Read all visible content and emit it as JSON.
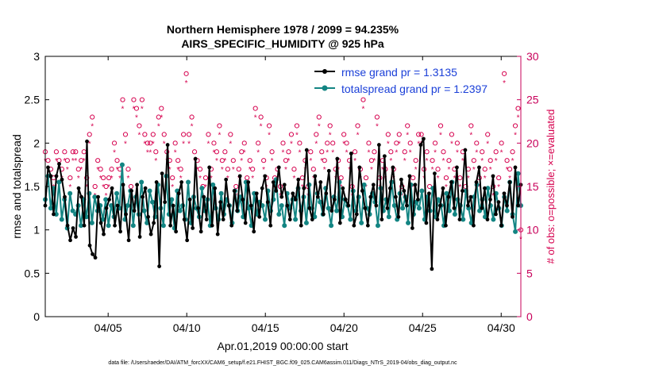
{
  "chart_data": {
    "type": "line",
    "title_line1": "Northern Hemisphere 1978 / 2099 = 94.235%",
    "title_line2": "AIRS_SPECIFIC_HUMIDITY @ 925 hPa",
    "xlabel": "Apr.01,2019 00:00:00 start",
    "ylabel_left": "rmse and totalspread",
    "ylabel_right": "# of obs: o=possible; ×=evaluated",
    "footer": "data file: /Users/raeder/DAI/ATM_forcXX/CAM6_setup/f.e21.FHIST_BGC.f09_025.CAM6assim.011/Diags_NTrS_2019-04/obs_diag_output.nc",
    "x_range": [
      1.0,
      31.25
    ],
    "ylim_left": [
      0,
      3
    ],
    "ylim_right": [
      0,
      30
    ],
    "x_ticks": [
      5,
      10,
      15,
      20,
      25,
      30
    ],
    "x_tick_labels": [
      "04/05",
      "04/10",
      "04/15",
      "04/20",
      "04/25",
      "04/30"
    ],
    "y_left_ticks": [
      0,
      0.5,
      1,
      1.5,
      2,
      2.5,
      3
    ],
    "y_left_tick_labels": [
      "0",
      "0.5",
      "1",
      "1.5",
      "2",
      "2.5",
      "3"
    ],
    "y_right_ticks": [
      0,
      5,
      10,
      15,
      20,
      25,
      30
    ],
    "y_right_tick_labels": [
      "0",
      "5",
      "10",
      "15",
      "20",
      "25",
      "30"
    ],
    "legend_position": "top-right",
    "colors": {
      "rmse": "#000000",
      "spread": "#138583",
      "obs": "#d6004e",
      "axis": "#000000",
      "right_axis": "#c8005a",
      "legend_text": "#1a3fd8"
    },
    "series": [
      {
        "name": "rmse grand pr = 1.3135",
        "values": [
          1.28,
          1.72,
          1.62,
          1.18,
          1.62,
          1.76,
          1.58,
          1.38,
          1.05,
          0.88,
          1.02,
          0.92,
          1.48,
          1.38,
          1.05,
          2.02,
          0.82,
          0.72,
          0.68,
          1.38,
          1.08,
          0.95,
          1.25,
          1.35,
          1.48,
          1.05,
          1.28,
          0.98,
          1.52,
          1.18,
          0.88,
          1.45,
          1.22,
          1.52,
          0.92,
          1.38,
          1.48,
          1.15,
          0.95,
          1.08,
          1.55,
          0.58,
          1.65,
          1.32,
          1.98,
          1.05,
          1.28,
          0.98,
          1.42,
          1.55,
          1.12,
          0.88,
          1.35,
          1.02,
          1.82,
          1.25,
          0.98,
          1.38,
          1.12,
          1.72,
          1.05,
          1.48,
          0.95,
          1.32,
          1.12,
          1.58,
          1.28,
          1.05,
          1.45,
          1.22,
          1.62,
          1.35,
          1.08,
          1.55,
          1.28,
          0.98,
          1.42,
          1.15,
          1.48,
          1.62,
          1.32,
          1.05,
          1.55,
          1.45,
          1.72,
          1.38,
          1.52,
          1.28,
          1.12,
          1.42,
          1.35,
          1.58,
          1.05,
          1.48,
          1.92,
          1.25,
          1.12,
          1.62,
          1.38,
          1.55,
          1.18,
          1.42,
          1.68,
          1.22,
          1.35,
          1.82,
          1.08,
          1.48,
          1.35,
          1.28,
          1.88,
          1.05,
          1.18,
          1.72,
          1.45,
          1.25,
          1.05,
          1.38,
          1.52,
          1.28,
          1.98,
          1.12,
          1.85,
          1.25,
          1.48,
          1.72,
          1.38,
          1.15,
          1.58,
          1.45,
          1.28,
          1.62,
          1.02,
          1.52,
          1.35,
          1.98,
          2.05,
          1.08,
          1.42,
          0.55,
          1.65,
          1.12,
          1.28,
          1.48,
          1.05,
          1.38,
          1.55,
          1.25,
          1.72,
          1.12,
          1.45,
          1.92,
          1.28,
          1.38,
          1.05,
          1.55,
          1.72,
          1.25,
          1.48,
          1.12,
          1.35,
          1.62,
          1.18,
          1.32,
          1.05,
          1.42,
          1.28,
          1.55,
          1.15,
          1.72,
          1.28,
          1.52
        ]
      },
      {
        "name": "totalspread grand pr = 1.2397",
        "values": [
          1.35,
          1.62,
          1.25,
          1.48,
          1.18,
          1.55,
          1.12,
          1.35,
          1.02,
          1.42,
          1.22,
          1.18,
          1.28,
          1.05,
          1.35,
          1.15,
          1.42,
          1.08,
          1.38,
          1.22,
          1.28,
          1.12,
          1.35,
          1.05,
          1.28,
          1.15,
          1.42,
          1.25,
          1.75,
          1.12,
          1.28,
          1.45,
          1.05,
          1.38,
          1.18,
          1.55,
          1.22,
          1.08,
          1.45,
          1.32,
          1.15,
          1.52,
          1.25,
          1.05,
          1.62,
          1.18,
          1.35,
          1.02,
          1.45,
          1.22,
          1.28,
          1.12,
          1.55,
          1.08,
          1.38,
          1.25,
          1.15,
          1.48,
          1.22,
          1.35,
          1.05,
          1.52,
          1.25,
          1.12,
          1.42,
          1.18,
          1.35,
          1.28,
          1.08,
          1.45,
          1.22,
          1.38,
          1.15,
          1.55,
          1.25,
          1.05,
          1.42,
          1.18,
          1.32,
          1.28,
          1.12,
          1.45,
          1.22,
          1.35,
          1.58,
          1.18,
          1.28,
          1.05,
          1.42,
          1.25,
          1.35,
          1.12,
          1.48,
          1.22,
          1.38,
          1.08,
          1.52,
          1.25,
          1.15,
          1.42,
          1.32,
          1.18,
          1.48,
          1.25,
          1.05,
          1.38,
          1.22,
          1.55,
          1.15,
          1.35,
          1.28,
          1.12,
          1.45,
          1.22,
          1.38,
          1.08,
          1.52,
          1.25,
          1.18,
          1.42,
          1.32,
          1.05,
          1.48,
          1.22,
          1.35,
          1.15,
          1.55,
          1.28,
          1.12,
          1.42,
          1.25,
          1.38,
          1.08,
          1.52,
          1.18,
          1.32,
          1.25,
          1.45,
          1.12,
          1.38,
          1.22,
          1.48,
          1.15,
          1.35,
          1.28,
          1.05,
          1.42,
          1.22,
          1.55,
          1.18,
          1.35,
          1.28,
          1.12,
          1.45,
          1.25,
          1.08,
          1.38,
          1.52,
          1.22,
          1.35,
          1.15,
          1.48,
          1.28,
          1.12,
          1.42,
          1.25,
          1.05,
          1.38,
          1.22,
          1.55,
          1.18,
          0.98,
          1.65,
          1.28
        ]
      }
    ],
    "obs_possible": [
      19,
      18,
      17,
      16,
      19,
      18,
      17,
      19,
      18,
      16,
      19,
      19,
      17,
      18,
      19,
      16,
      21,
      23,
      15,
      18,
      17,
      16,
      15,
      16,
      17,
      20,
      18,
      17,
      25,
      21,
      17,
      15,
      25,
      24,
      22,
      25,
      21,
      20,
      20,
      21,
      19,
      23,
      24,
      21,
      19,
      18,
      16,
      20,
      18,
      17,
      21,
      28,
      21,
      23,
      19,
      18,
      17,
      15,
      16,
      21,
      17,
      20,
      19,
      22,
      18,
      19,
      17,
      21,
      18,
      15,
      17,
      19,
      20,
      16,
      18,
      17,
      24,
      20,
      23,
      18,
      16,
      22,
      19,
      16,
      17,
      15,
      20,
      18,
      19,
      21,
      17,
      22,
      20,
      16,
      18,
      15,
      19,
      17,
      21,
      23,
      19,
      18,
      20,
      22,
      20,
      17,
      18,
      16,
      21,
      20,
      18,
      15,
      19,
      22,
      17,
      25,
      16,
      20,
      18,
      19,
      23,
      16,
      18,
      17,
      21,
      19,
      17,
      20,
      21,
      15,
      19,
      22,
      20,
      16,
      18,
      21,
      21,
      17,
      19,
      15,
      18,
      20,
      17,
      22,
      19,
      16,
      18,
      21,
      17,
      20,
      16,
      19,
      15,
      17,
      22,
      18,
      20,
      16,
      19,
      17,
      21,
      18,
      15,
      19,
      16,
      20,
      28,
      18,
      17,
      19,
      22,
      24,
      10
    ],
    "obs_evaluated": [
      18,
      17,
      16,
      15,
      18,
      17,
      16,
      18,
      17,
      15,
      18,
      18,
      16,
      17,
      18,
      15,
      20,
      22,
      14,
      17,
      16,
      15,
      14,
      15,
      16,
      19,
      17,
      16,
      24,
      20,
      16,
      14,
      24,
      23,
      21,
      24,
      20,
      19,
      19,
      20,
      18,
      22,
      23,
      20,
      18,
      17,
      15,
      19,
      17,
      16,
      20,
      27,
      20,
      22,
      18,
      17,
      16,
      14,
      15,
      20,
      16,
      19,
      18,
      21,
      17,
      18,
      16,
      20,
      17,
      14,
      16,
      18,
      19,
      15,
      17,
      16,
      23,
      19,
      22,
      17,
      15,
      21,
      18,
      15,
      16,
      14,
      19,
      17,
      18,
      20,
      16,
      21,
      19,
      15,
      17,
      14,
      18,
      16,
      20,
      22,
      18,
      17,
      19,
      21,
      19,
      16,
      17,
      15,
      20,
      19,
      17,
      14,
      18,
      21,
      16,
      24,
      15,
      19,
      17,
      18,
      22,
      15,
      17,
      16,
      20,
      18,
      16,
      19,
      20,
      14,
      18,
      21,
      19,
      15,
      17,
      20,
      20,
      16,
      18,
      14,
      17,
      19,
      16,
      21,
      18,
      15,
      17,
      20,
      16,
      19,
      15,
      18,
      14,
      16,
      21,
      17,
      19,
      15,
      18,
      16,
      20,
      17,
      14,
      18,
      15,
      19,
      27,
      17,
      16,
      18,
      21,
      23,
      9
    ]
  }
}
